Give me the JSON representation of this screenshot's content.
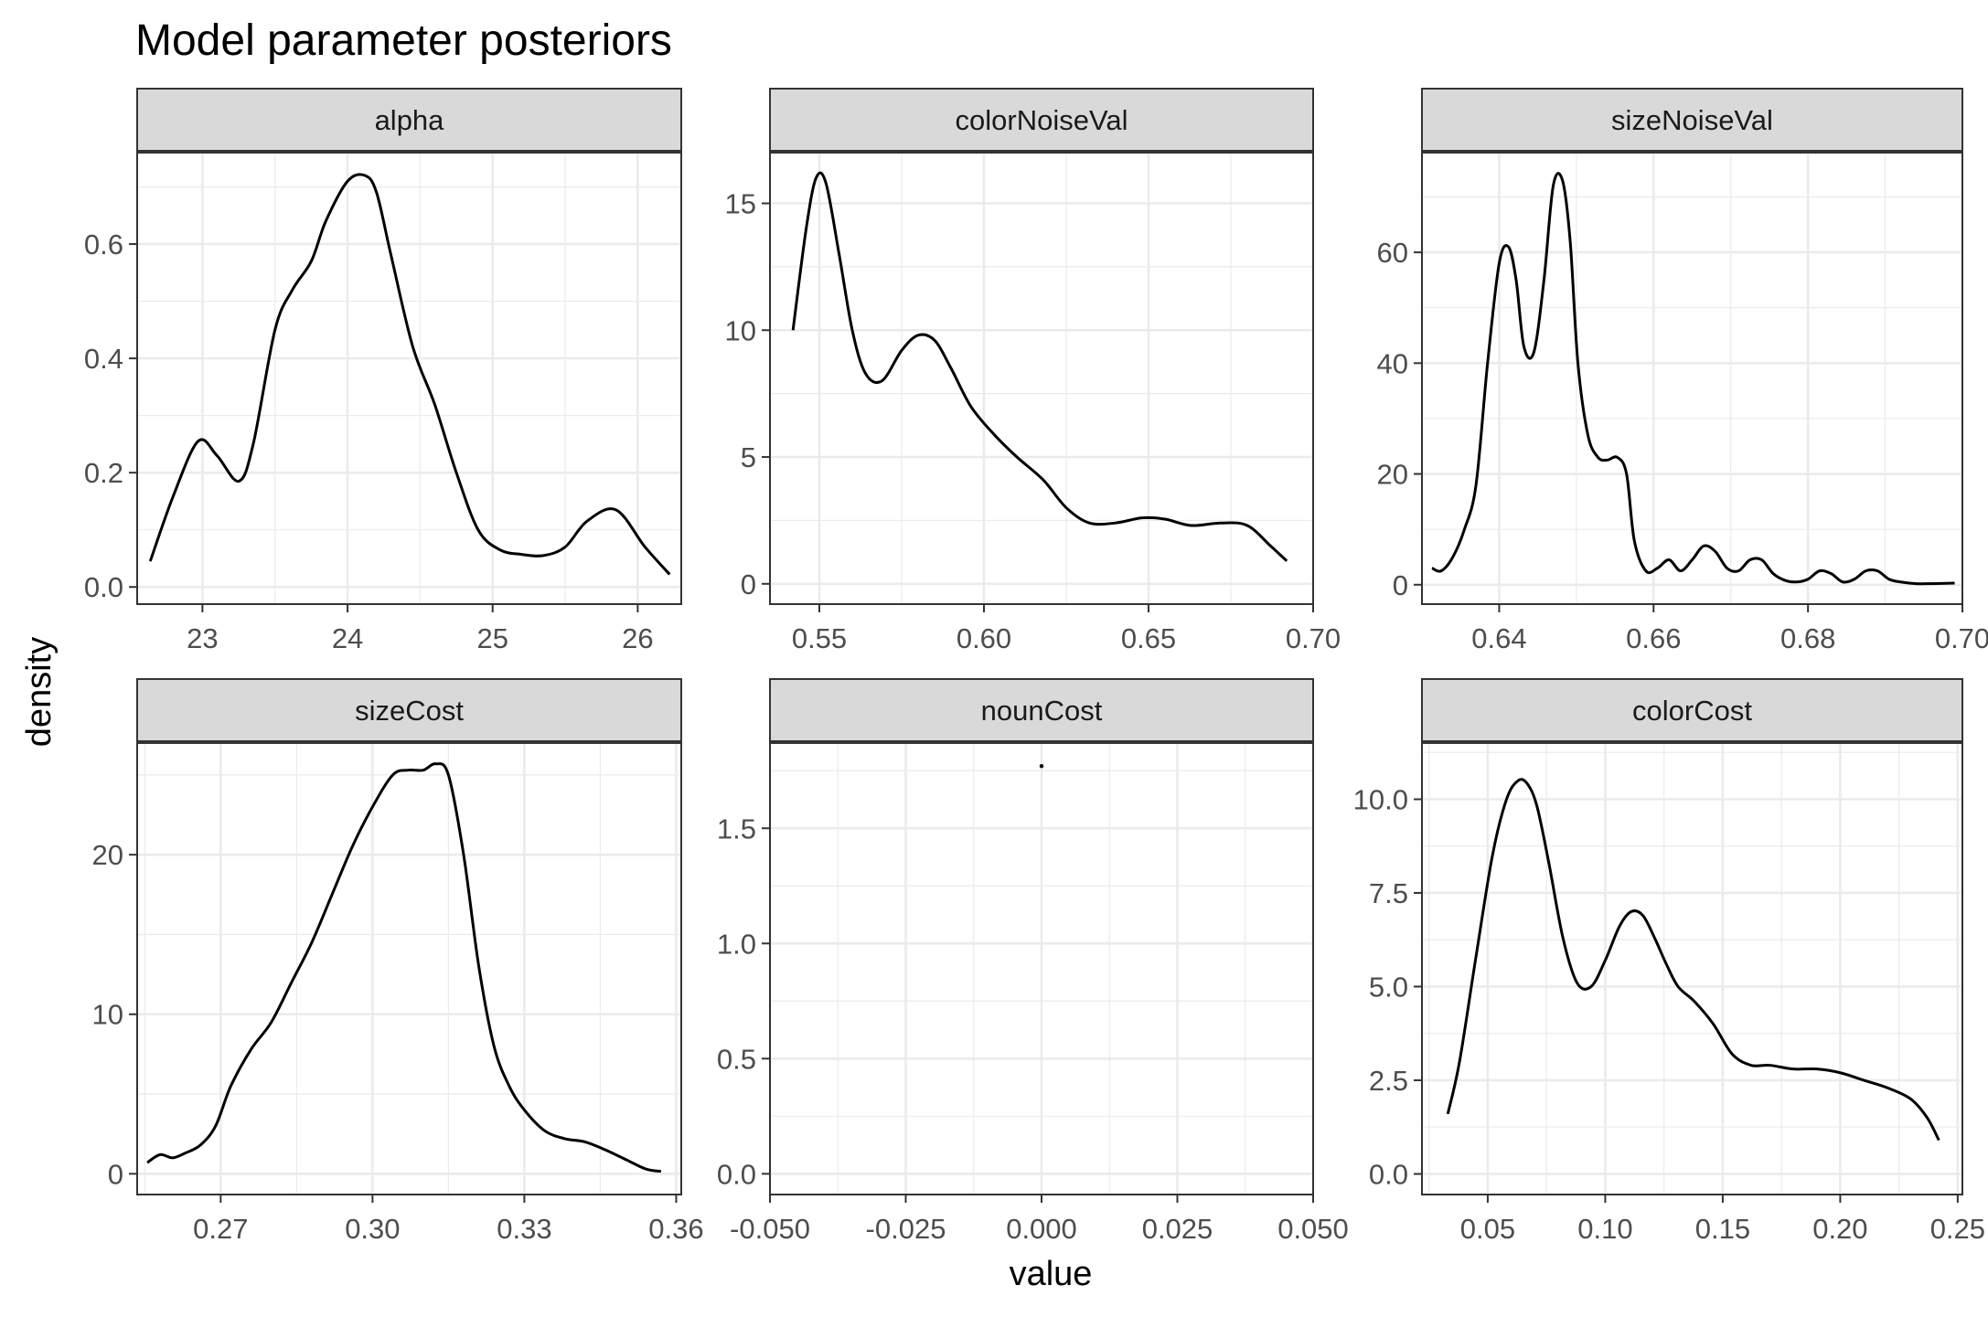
{
  "chart_data": {
    "type": "line",
    "title": "Model parameter posteriors",
    "xlabel": "value",
    "ylabel": "density",
    "grid": true,
    "legend": "none",
    "line_color": "#000000",
    "strip_fill": "#d9d9d9",
    "grid_color": "#ebebeb",
    "panels": [
      {
        "name": "alpha",
        "xlim": [
          22.55,
          26.3
        ],
        "ylim": [
          -0.03,
          0.76
        ],
        "xticks": [
          23,
          24,
          25,
          26
        ],
        "xtick_labels": [
          "23",
          "24",
          "25",
          "26"
        ],
        "yticks": [
          0.0,
          0.2,
          0.4,
          0.6
        ],
        "ytick_labels": [
          "0.0",
          "0.2",
          "0.4",
          "0.6"
        ],
        "x": [
          22.64,
          22.8,
          22.97,
          23.1,
          23.25,
          23.35,
          23.5,
          23.62,
          23.75,
          23.85,
          24.0,
          24.12,
          24.2,
          24.3,
          24.45,
          24.6,
          24.75,
          24.9,
          25.05,
          25.2,
          25.35,
          25.5,
          25.65,
          25.85,
          26.05,
          26.22
        ],
        "y": [
          0.045,
          0.16,
          0.255,
          0.23,
          0.185,
          0.25,
          0.45,
          0.52,
          0.57,
          0.64,
          0.71,
          0.72,
          0.69,
          0.58,
          0.42,
          0.32,
          0.2,
          0.1,
          0.065,
          0.057,
          0.055,
          0.07,
          0.115,
          0.135,
          0.07,
          0.022
        ]
      },
      {
        "name": "colorNoiseVal",
        "xlim": [
          0.535,
          0.7
        ],
        "ylim": [
          -0.8,
          17.0
        ],
        "xticks": [
          0.55,
          0.6,
          0.65,
          0.7
        ],
        "xtick_labels": [
          "0.55",
          "0.60",
          "0.65",
          "0.70"
        ],
        "yticks": [
          0,
          5,
          10,
          15
        ],
        "ytick_labels": [
          "0",
          "5",
          "10",
          "15"
        ],
        "x": [
          0.542,
          0.546,
          0.549,
          0.552,
          0.556,
          0.56,
          0.564,
          0.569,
          0.575,
          0.58,
          0.585,
          0.59,
          0.596,
          0.603,
          0.61,
          0.618,
          0.625,
          0.632,
          0.64,
          0.648,
          0.655,
          0.663,
          0.672,
          0.68,
          0.687,
          0.692
        ],
        "y": [
          10.0,
          14.0,
          16.0,
          15.8,
          13.0,
          10.0,
          8.3,
          8.0,
          9.2,
          9.8,
          9.6,
          8.5,
          7.0,
          5.9,
          5.0,
          4.1,
          3.0,
          2.4,
          2.4,
          2.6,
          2.55,
          2.3,
          2.4,
          2.3,
          1.5,
          0.9
        ]
      },
      {
        "name": "sizeNoiseVal",
        "xlim": [
          0.63,
          0.7
        ],
        "ylim": [
          -3.5,
          78.0
        ],
        "xticks": [
          0.64,
          0.66,
          0.68,
          0.7
        ],
        "xtick_labels": [
          "0.64",
          "0.66",
          "0.68",
          "0.70"
        ],
        "yticks": [
          0,
          20,
          40,
          60
        ],
        "ytick_labels": [
          "0",
          "20",
          "40",
          "60"
        ],
        "x": [
          0.6313,
          0.6325,
          0.634,
          0.6355,
          0.637,
          0.6385,
          0.64,
          0.6412,
          0.6422,
          0.6432,
          0.6445,
          0.6458,
          0.647,
          0.6482,
          0.6492,
          0.6502,
          0.6515,
          0.6528,
          0.654,
          0.6553,
          0.6565,
          0.6575,
          0.659,
          0.6605,
          0.662,
          0.6635,
          0.665,
          0.6665,
          0.668,
          0.6695,
          0.671,
          0.6725,
          0.674,
          0.6755,
          0.677,
          0.6785,
          0.68,
          0.6815,
          0.683,
          0.6845,
          0.686,
          0.6875,
          0.689,
          0.6905,
          0.692,
          0.694,
          0.696,
          0.699
        ],
        "y": [
          3.0,
          2.5,
          5.0,
          10.0,
          18.0,
          40.0,
          58.0,
          61.0,
          55.0,
          43.0,
          42.0,
          55.0,
          72.0,
          73.0,
          62.0,
          40.0,
          27.0,
          23.0,
          22.5,
          23.0,
          20.0,
          8.0,
          2.5,
          3.0,
          4.5,
          2.5,
          4.5,
          7.0,
          6.0,
          3.0,
          2.5,
          4.5,
          4.5,
          2.0,
          0.8,
          0.5,
          1.0,
          2.5,
          2.0,
          0.5,
          1.0,
          2.5,
          2.5,
          1.0,
          0.5,
          0.2,
          0.2,
          0.3
        ]
      },
      {
        "name": "sizeCost",
        "xlim": [
          0.2535,
          0.361
        ],
        "ylim": [
          -1.3,
          27.0
        ],
        "xticks": [
          0.27,
          0.3,
          0.33,
          0.36
        ],
        "xtick_labels": [
          "0.27",
          "0.30",
          "0.33",
          "0.36"
        ],
        "yticks": [
          0,
          10,
          20
        ],
        "ytick_labels": [
          "0",
          "10",
          "20"
        ],
        "x": [
          0.2555,
          0.258,
          0.2605,
          0.263,
          0.266,
          0.269,
          0.272,
          0.276,
          0.28,
          0.284,
          0.288,
          0.292,
          0.296,
          0.3,
          0.304,
          0.307,
          0.31,
          0.3125,
          0.315,
          0.318,
          0.321,
          0.324,
          0.327,
          0.33,
          0.334,
          0.338,
          0.342,
          0.346,
          0.35,
          0.354,
          0.357
        ],
        "y": [
          0.7,
          1.2,
          1.0,
          1.3,
          1.8,
          3.0,
          5.5,
          7.8,
          9.5,
          12.0,
          14.5,
          17.5,
          20.5,
          23.0,
          25.0,
          25.3,
          25.3,
          25.7,
          25.0,
          20.0,
          13.0,
          8.0,
          5.5,
          4.0,
          2.7,
          2.2,
          2.0,
          1.5,
          0.9,
          0.3,
          0.15
        ]
      },
      {
        "name": "nounCost",
        "xlim": [
          -0.05,
          0.05
        ],
        "ylim": [
          -0.09,
          1.87
        ],
        "xticks": [
          -0.05,
          -0.025,
          0.0,
          0.025,
          0.05
        ],
        "xtick_labels": [
          "-0.050",
          "-0.025",
          "0.000",
          "0.025",
          "0.050"
        ],
        "yticks": [
          0.0,
          0.5,
          1.0,
          1.5
        ],
        "ytick_labels": [
          "0.0",
          "0.5",
          "1.0",
          "1.5"
        ],
        "x": [
          0.0
        ],
        "y": [
          1.77
        ]
      },
      {
        "name": "colorCost",
        "xlim": [
          0.022,
          0.252
        ],
        "ylim": [
          -0.55,
          11.5
        ],
        "xticks": [
          0.05,
          0.1,
          0.15,
          0.2,
          0.25
        ],
        "xtick_labels": [
          "0.05",
          "0.10",
          "0.15",
          "0.20",
          "0.25"
        ],
        "yticks": [
          0.0,
          2.5,
          5.0,
          7.5,
          10.0
        ],
        "ytick_labels": [
          "0.0",
          "2.5",
          "5.0",
          "7.5",
          "10.0"
        ],
        "x": [
          0.033,
          0.038,
          0.045,
          0.052,
          0.058,
          0.063,
          0.067,
          0.071,
          0.076,
          0.082,
          0.088,
          0.094,
          0.1,
          0.106,
          0.111,
          0.116,
          0.121,
          0.126,
          0.131,
          0.138,
          0.146,
          0.154,
          0.162,
          0.17,
          0.18,
          0.19,
          0.2,
          0.21,
          0.22,
          0.23,
          0.237,
          0.242
        ],
        "y": [
          1.6,
          3.0,
          5.8,
          8.5,
          10.0,
          10.5,
          10.4,
          9.8,
          8.3,
          6.3,
          5.1,
          5.0,
          5.7,
          6.6,
          7.0,
          6.9,
          6.3,
          5.6,
          5.0,
          4.6,
          4.0,
          3.2,
          2.9,
          2.9,
          2.8,
          2.8,
          2.7,
          2.5,
          2.3,
          2.0,
          1.5,
          0.9
        ]
      }
    ]
  }
}
